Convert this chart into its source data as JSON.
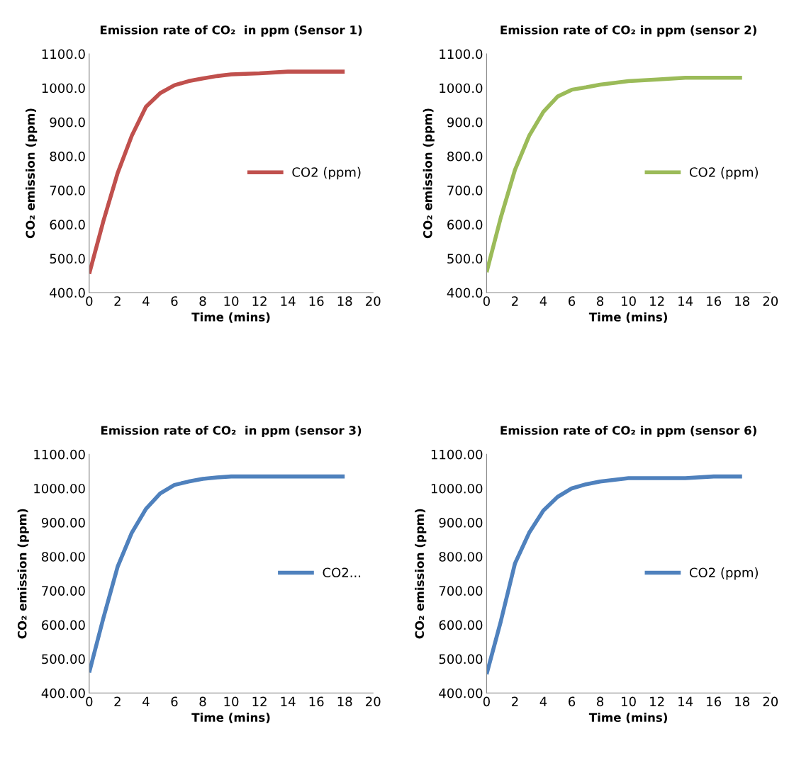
{
  "chart_data": [
    {
      "type": "line",
      "title": "Emission rate of CO₂  in ppm (Sensor 1)",
      "xlabel": "Time (mins)",
      "ylabel": "CO₂ emission (ppm)",
      "x": [
        0,
        1,
        2,
        3,
        4,
        5,
        6,
        7,
        8,
        9,
        10,
        12,
        14,
        16,
        18
      ],
      "series": [
        {
          "name": "CO2 (ppm)",
          "color": "#c0504d",
          "values": [
            455,
            610,
            750,
            860,
            945,
            985,
            1008,
            1020,
            1028,
            1035,
            1040,
            1043,
            1048,
            1048,
            1048
          ]
        }
      ],
      "xlim": [
        0,
        20
      ],
      "xticks": [
        0,
        2,
        4,
        6,
        8,
        10,
        12,
        14,
        16,
        18,
        20
      ],
      "ylim": [
        400,
        1100
      ],
      "yticks": [
        {
          "value": 400,
          "label": "400.0"
        },
        {
          "value": 500,
          "label": "500.0"
        },
        {
          "value": 600,
          "label": "600.0"
        },
        {
          "value": 700,
          "label": "700.0"
        },
        {
          "value": 800,
          "label": "800.0"
        },
        {
          "value": 900,
          "label": "900.0"
        },
        {
          "value": 1000,
          "label": "1000.0"
        },
        {
          "value": 1100,
          "label": "1100.0"
        }
      ],
      "grid": false,
      "legend": "right",
      "marker": "none",
      "line_style": "solid"
    },
    {
      "type": "line",
      "title": "Emission rate of CO₂ in ppm (sensor 2)",
      "xlabel": "Time (mins)",
      "ylabel": "CO₂ emission (ppm)",
      "x": [
        0,
        1,
        2,
        3,
        4,
        5,
        6,
        7,
        8,
        10,
        12,
        14,
        16,
        18
      ],
      "series": [
        {
          "name": "CO2 (ppm)",
          "color": "#9bbb59",
          "values": [
            460,
            620,
            760,
            860,
            930,
            975,
            995,
            1002,
            1010,
            1020,
            1025,
            1030,
            1030,
            1030
          ]
        }
      ],
      "xlim": [
        0,
        20
      ],
      "xticks": [
        0,
        2,
        4,
        6,
        8,
        10,
        12,
        14,
        16,
        18,
        20
      ],
      "ylim": [
        400,
        1100
      ],
      "yticks": [
        {
          "value": 400,
          "label": "400.0"
        },
        {
          "value": 500,
          "label": "500.0"
        },
        {
          "value": 600,
          "label": "600.0"
        },
        {
          "value": 700,
          "label": "700.0"
        },
        {
          "value": 800,
          "label": "800.0"
        },
        {
          "value": 900,
          "label": "900.0"
        },
        {
          "value": 1000,
          "label": "1000.0"
        },
        {
          "value": 1100,
          "label": "1100.0"
        }
      ],
      "grid": false,
      "legend": "right",
      "marker": "none",
      "line_style": "solid"
    },
    {
      "type": "line",
      "title": "Emission rate of CO₂  in ppm (sensor 3)",
      "xlabel": "Time (mins)",
      "ylabel": "CO₂ emission (ppm)",
      "x": [
        0,
        1,
        2,
        3,
        4,
        5,
        6,
        7,
        8,
        9,
        10,
        12,
        14,
        16,
        18
      ],
      "series": [
        {
          "name": "CO2...",
          "color": "#4f81bd",
          "values": [
            460,
            620,
            770,
            870,
            940,
            985,
            1010,
            1020,
            1028,
            1032,
            1035,
            1035,
            1035,
            1035,
            1035
          ]
        }
      ],
      "xlim": [
        0,
        20
      ],
      "xticks": [
        0,
        2,
        4,
        6,
        8,
        10,
        12,
        14,
        16,
        18,
        20
      ],
      "ylim": [
        400,
        1100
      ],
      "yticks": [
        {
          "value": 400,
          "label": "400.00"
        },
        {
          "value": 500,
          "label": "500.00"
        },
        {
          "value": 600,
          "label": "600.00"
        },
        {
          "value": 700,
          "label": "700.00"
        },
        {
          "value": 800,
          "label": "800.00"
        },
        {
          "value": 900,
          "label": "900.00"
        },
        {
          "value": 1000,
          "label": "1000.00"
        },
        {
          "value": 1100,
          "label": "1100.00"
        }
      ],
      "grid": false,
      "legend": "right",
      "marker": "none",
      "line_style": "solid"
    },
    {
      "type": "line",
      "title": "Emission rate of CO₂ in ppm (sensor 6)",
      "xlabel": "Time (mins)",
      "ylabel": "CO₂ emission (ppm)",
      "x": [
        0,
        1,
        2,
        3,
        4,
        5,
        6,
        7,
        8,
        10,
        12,
        14,
        16,
        18
      ],
      "series": [
        {
          "name": "CO2 (ppm)",
          "color": "#4f81bd",
          "values": [
            455,
            610,
            780,
            870,
            935,
            975,
            1000,
            1012,
            1020,
            1030,
            1030,
            1030,
            1035,
            1035
          ]
        }
      ],
      "xlim": [
        0,
        20
      ],
      "xticks": [
        0,
        2,
        4,
        6,
        8,
        10,
        12,
        14,
        16,
        18,
        20
      ],
      "ylim": [
        400,
        1100
      ],
      "yticks": [
        {
          "value": 400,
          "label": "400.00"
        },
        {
          "value": 500,
          "label": "500.00"
        },
        {
          "value": 600,
          "label": "600.00"
        },
        {
          "value": 700,
          "label": "700.00"
        },
        {
          "value": 800,
          "label": "800.00"
        },
        {
          "value": 900,
          "label": "900.00"
        },
        {
          "value": 1000,
          "label": "1000.00"
        },
        {
          "value": 1100,
          "label": "1100.00"
        }
      ],
      "grid": false,
      "legend": "right",
      "marker": "none",
      "line_style": "solid"
    }
  ]
}
